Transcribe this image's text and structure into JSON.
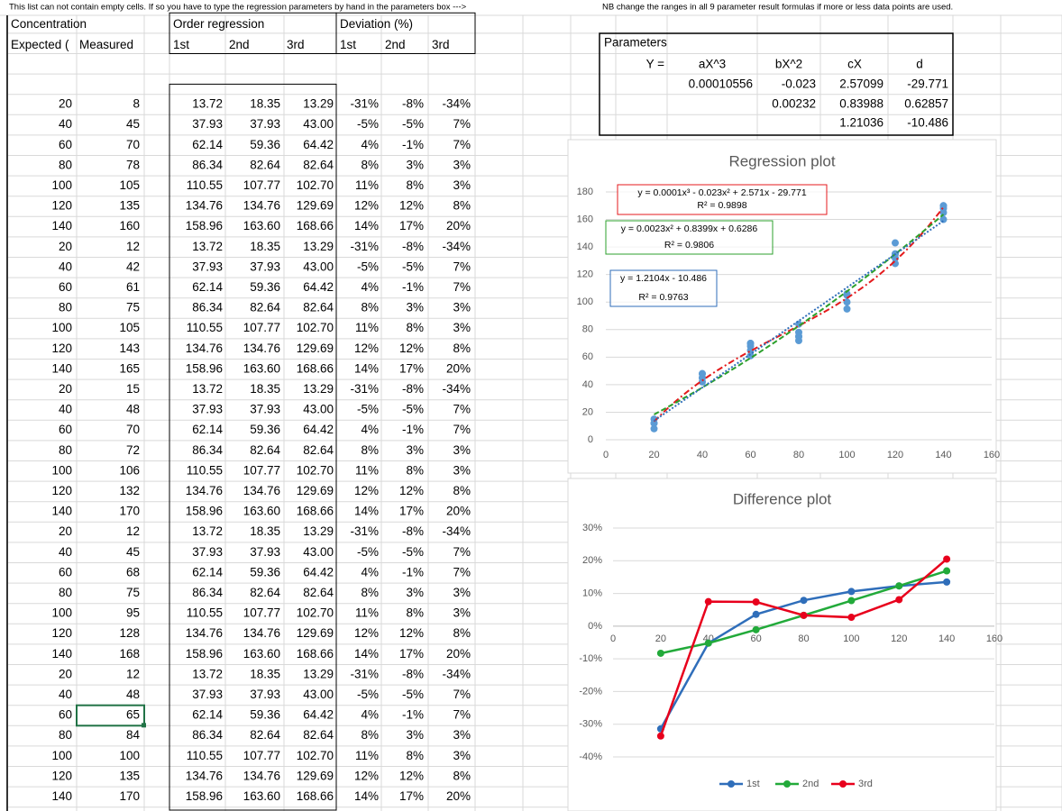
{
  "notes": [
    "This list can not contain empty cells. If so you have to type the regression parameters by hand in the parameters box --->",
    "NB change the ranges in all 9 parameter result formulas if more or less data points are used."
  ],
  "table": {
    "groups": [
      "Concentration",
      "Order regression",
      "Deviation (%)"
    ],
    "columns": [
      "Expected (",
      "Measured",
      "1st",
      "2nd",
      "3rd",
      "1st",
      "2nd",
      "3rd"
    ],
    "rows": [
      [
        "20",
        "8",
        "13.72",
        "18.35",
        "13.29",
        "-31%",
        "-8%",
        "-34%"
      ],
      [
        "40",
        "45",
        "37.93",
        "37.93",
        "43.00",
        "-5%",
        "-5%",
        "7%"
      ],
      [
        "60",
        "70",
        "62.14",
        "59.36",
        "64.42",
        "4%",
        "-1%",
        "7%"
      ],
      [
        "80",
        "78",
        "86.34",
        "82.64",
        "82.64",
        "8%",
        "3%",
        "3%"
      ],
      [
        "100",
        "105",
        "110.55",
        "107.77",
        "102.70",
        "11%",
        "8%",
        "3%"
      ],
      [
        "120",
        "135",
        "134.76",
        "134.76",
        "129.69",
        "12%",
        "12%",
        "8%"
      ],
      [
        "140",
        "160",
        "158.96",
        "163.60",
        "168.66",
        "14%",
        "17%",
        "20%"
      ],
      [
        "20",
        "12",
        "13.72",
        "18.35",
        "13.29",
        "-31%",
        "-8%",
        "-34%"
      ],
      [
        "40",
        "42",
        "37.93",
        "37.93",
        "43.00",
        "-5%",
        "-5%",
        "7%"
      ],
      [
        "60",
        "61",
        "62.14",
        "59.36",
        "64.42",
        "4%",
        "-1%",
        "7%"
      ],
      [
        "80",
        "75",
        "86.34",
        "82.64",
        "82.64",
        "8%",
        "3%",
        "3%"
      ],
      [
        "100",
        "105",
        "110.55",
        "107.77",
        "102.70",
        "11%",
        "8%",
        "3%"
      ],
      [
        "120",
        "143",
        "134.76",
        "134.76",
        "129.69",
        "12%",
        "12%",
        "8%"
      ],
      [
        "140",
        "165",
        "158.96",
        "163.60",
        "168.66",
        "14%",
        "17%",
        "20%"
      ],
      [
        "20",
        "15",
        "13.72",
        "18.35",
        "13.29",
        "-31%",
        "-8%",
        "-34%"
      ],
      [
        "40",
        "48",
        "37.93",
        "37.93",
        "43.00",
        "-5%",
        "-5%",
        "7%"
      ],
      [
        "60",
        "70",
        "62.14",
        "59.36",
        "64.42",
        "4%",
        "-1%",
        "7%"
      ],
      [
        "80",
        "72",
        "86.34",
        "82.64",
        "82.64",
        "8%",
        "3%",
        "3%"
      ],
      [
        "100",
        "106",
        "110.55",
        "107.77",
        "102.70",
        "11%",
        "8%",
        "3%"
      ],
      [
        "120",
        "132",
        "134.76",
        "134.76",
        "129.69",
        "12%",
        "12%",
        "8%"
      ],
      [
        "140",
        "170",
        "158.96",
        "163.60",
        "168.66",
        "14%",
        "17%",
        "20%"
      ],
      [
        "20",
        "12",
        "13.72",
        "18.35",
        "13.29",
        "-31%",
        "-8%",
        "-34%"
      ],
      [
        "40",
        "45",
        "37.93",
        "37.93",
        "43.00",
        "-5%",
        "-5%",
        "7%"
      ],
      [
        "60",
        "68",
        "62.14",
        "59.36",
        "64.42",
        "4%",
        "-1%",
        "7%"
      ],
      [
        "80",
        "75",
        "86.34",
        "82.64",
        "82.64",
        "8%",
        "3%",
        "3%"
      ],
      [
        "100",
        "95",
        "110.55",
        "107.77",
        "102.70",
        "11%",
        "8%",
        "3%"
      ],
      [
        "120",
        "128",
        "134.76",
        "134.76",
        "129.69",
        "12%",
        "12%",
        "8%"
      ],
      [
        "140",
        "168",
        "158.96",
        "163.60",
        "168.66",
        "14%",
        "17%",
        "20%"
      ],
      [
        "20",
        "12",
        "13.72",
        "18.35",
        "13.29",
        "-31%",
        "-8%",
        "-34%"
      ],
      [
        "40",
        "48",
        "37.93",
        "37.93",
        "43.00",
        "-5%",
        "-5%",
        "7%"
      ],
      [
        "60",
        "65",
        "62.14",
        "59.36",
        "64.42",
        "4%",
        "-1%",
        "7%"
      ],
      [
        "80",
        "84",
        "86.34",
        "82.64",
        "82.64",
        "8%",
        "3%",
        "3%"
      ],
      [
        "100",
        "100",
        "110.55",
        "107.77",
        "102.70",
        "11%",
        "8%",
        "3%"
      ],
      [
        "120",
        "135",
        "134.76",
        "134.76",
        "129.69",
        "12%",
        "12%",
        "8%"
      ],
      [
        "140",
        "170",
        "158.96",
        "163.60",
        "168.66",
        "14%",
        "17%",
        "20%"
      ]
    ]
  },
  "parameters": {
    "title": "Parameters",
    "columns": [
      "Y =",
      "aX^3",
      "bX^2",
      "cX",
      "d"
    ],
    "rows": [
      [
        "0.00010556",
        "-0.023",
        "2.57099",
        "-29.771"
      ],
      [
        "0.00232",
        "0.83988",
        "0.62857"
      ],
      [
        "1.21036",
        "-10.486"
      ]
    ]
  },
  "chart_data": [
    {
      "type": "scatter",
      "title": "Regression plot",
      "x": [
        20,
        40,
        60,
        80,
        100,
        120,
        140,
        20,
        40,
        60,
        80,
        100,
        120,
        140,
        20,
        40,
        60,
        80,
        100,
        120,
        140,
        20,
        40,
        60,
        80,
        100,
        120,
        140,
        20,
        40,
        60,
        80,
        100,
        120,
        140
      ],
      "values": [
        8,
        45,
        70,
        78,
        105,
        135,
        160,
        12,
        42,
        61,
        75,
        105,
        143,
        165,
        15,
        48,
        70,
        72,
        106,
        132,
        170,
        12,
        45,
        68,
        75,
        95,
        128,
        168,
        12,
        48,
        65,
        84,
        100,
        135,
        170
      ],
      "color": "#5b9bd5",
      "xlim": [
        0,
        160
      ],
      "xticks": [
        0,
        20,
        40,
        60,
        80,
        100,
        120,
        140,
        160
      ],
      "ylim": [
        0,
        180
      ],
      "yticks": [
        0,
        20,
        40,
        60,
        80,
        100,
        120,
        140,
        160,
        180
      ],
      "grid": true,
      "trendlines": [
        {
          "label": "y = 0.0001x³ - 0.023x² + 2.571x - 29.771",
          "r2": "R² = 0.9898",
          "color": "#e41a1c"
        },
        {
          "label": "y = 0.0023x² + 0.8399x + 0.6286",
          "r2": "R² = 0.9806",
          "color": "#2ca02c"
        },
        {
          "label": "y = 1.2104x - 10.486",
          "r2": "R² = 0.9763",
          "color": "#2f6eba"
        }
      ]
    },
    {
      "type": "line",
      "title": "Difference plot",
      "x": [
        20,
        40,
        60,
        80,
        100,
        120,
        140
      ],
      "series": [
        {
          "name": "1st",
          "color": "#2f6eba",
          "values": [
            -31.4,
            -5.2,
            3.6,
            7.9,
            10.6,
            12.3,
            13.5
          ]
        },
        {
          "name": "2nd",
          "color": "#22aa3a",
          "values": [
            -8.3,
            -5.2,
            -1.1,
            3.3,
            7.8,
            12.3,
            16.9
          ]
        },
        {
          "name": "3rd",
          "color": "#e8001c",
          "values": [
            -33.6,
            7.5,
            7.4,
            3.3,
            2.7,
            8.1,
            20.5
          ]
        }
      ],
      "xlim": [
        0,
        160
      ],
      "xticks": [
        0,
        20,
        40,
        60,
        80,
        100,
        120,
        140,
        160
      ],
      "ylim": [
        -40,
        30
      ],
      "yticks": [
        {
          "value": -40,
          "label": "-40%"
        },
        {
          "value": -30,
          "label": "-30%"
        },
        {
          "value": -20,
          "label": "-20%"
        },
        {
          "value": -10,
          "label": "-10%"
        },
        {
          "value": 0,
          "label": "0%"
        },
        {
          "value": 10,
          "label": "10%"
        },
        {
          "value": 20,
          "label": "20%"
        },
        {
          "value": 30,
          "label": "30%"
        }
      ],
      "grid": true,
      "legend": "bottom"
    }
  ]
}
